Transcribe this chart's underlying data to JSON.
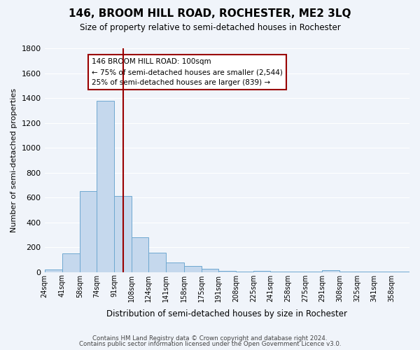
{
  "title": "146, BROOM HILL ROAD, ROCHESTER, ME2 3LQ",
  "subtitle": "Size of property relative to semi-detached houses in Rochester",
  "bar_values": [
    20,
    150,
    650,
    1380,
    610,
    280,
    155,
    75,
    50,
    25,
    10,
    5,
    10,
    5,
    5,
    5,
    15,
    5,
    5,
    5,
    5
  ],
  "categories": [
    "24sqm",
    "41sqm",
    "58sqm",
    "74sqm",
    "91sqm",
    "108sqm",
    "124sqm",
    "141sqm",
    "158sqm",
    "175sqm",
    "191sqm",
    "208sqm",
    "225sqm",
    "241sqm",
    "258sqm",
    "275sqm",
    "291sqm",
    "308sqm",
    "325sqm",
    "341sqm",
    "358sqm"
  ],
  "bar_color": "#c5d8ed",
  "bar_edge_color": "#6ea8d0",
  "vline_x": 100,
  "vline_color": "#990000",
  "annotation_title": "146 BROOM HILL ROAD: 100sqm",
  "annotation_line1": "← 75% of semi-detached houses are smaller (2,544)",
  "annotation_line2": "25% of semi-detached houses are larger (839) →",
  "annotation_box_color": "#ffffff",
  "annotation_box_edge": "#990000",
  "ylabel": "Number of semi-detached properties",
  "xlabel": "Distribution of semi-detached houses by size in Rochester",
  "ylim": [
    0,
    1800
  ],
  "yticks": [
    0,
    200,
    400,
    600,
    800,
    1000,
    1200,
    1400,
    1600,
    1800
  ],
  "footer1": "Contains HM Land Registry data © Crown copyright and database right 2024.",
  "footer2": "Contains public sector information licensed under the Open Government Licence v3.0.",
  "bg_color": "#f0f4fa",
  "grid_color": "#ffffff",
  "bin_edges": [
    24,
    41,
    58,
    74,
    91,
    108,
    124,
    141,
    158,
    175,
    191,
    208,
    225,
    241,
    258,
    275,
    291,
    308,
    325,
    341,
    358,
    375
  ]
}
